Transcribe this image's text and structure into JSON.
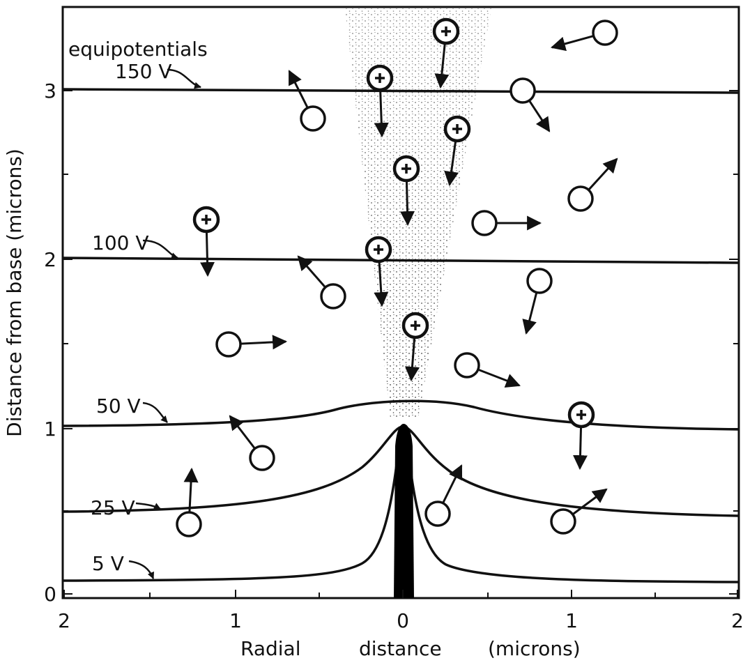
{
  "y_axis": {
    "label": "Distance from base (microns)",
    "ticks": [
      "0",
      "1",
      "2",
      "3"
    ]
  },
  "x_axis": {
    "label_parts": [
      "Radial",
      "distance",
      "(microns)"
    ],
    "ticks": [
      "2",
      "1",
      "0",
      "1",
      "2"
    ]
  },
  "legend_title": "equipotentials",
  "equipotentials": [
    "150 V",
    "100 V",
    "50 V",
    "25 V",
    "5 V"
  ]
}
